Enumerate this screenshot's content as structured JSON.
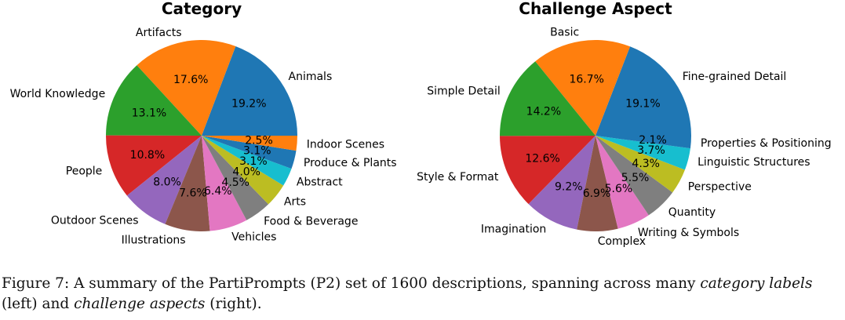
{
  "chart_data": [
    {
      "type": "pie",
      "title": "Category",
      "slices": [
        {
          "label": "Animals",
          "value": 19.2,
          "pct_label": "19.2%",
          "color": "#1f77b4"
        },
        {
          "label": "Artifacts",
          "value": 17.6,
          "pct_label": "17.6%",
          "color": "#ff7f0e"
        },
        {
          "label": "World Knowledge",
          "value": 13.1,
          "pct_label": "13.1%",
          "color": "#2ca02c"
        },
        {
          "label": "People",
          "value": 10.8,
          "pct_label": "10.8%",
          "color": "#d62728"
        },
        {
          "label": "Outdoor Scenes",
          "value": 8.0,
          "pct_label": "8.0%",
          "color": "#9467bd"
        },
        {
          "label": "Illustrations",
          "value": 7.6,
          "pct_label": "7.6%",
          "color": "#8c564b"
        },
        {
          "label": "Vehicles",
          "value": 6.4,
          "pct_label": "6.4%",
          "color": "#e377c2"
        },
        {
          "label": "Food & Beverage",
          "value": 4.5,
          "pct_label": "4.5%",
          "color": "#7f7f7f"
        },
        {
          "label": "Arts",
          "value": 4.0,
          "pct_label": "4.0%",
          "color": "#bcbd22"
        },
        {
          "label": "Abstract",
          "value": 3.1,
          "pct_label": "3.1%",
          "color": "#17becf"
        },
        {
          "label": "Produce & Plants",
          "value": 3.1,
          "pct_label": "3.1%",
          "color": "#1f77b4"
        },
        {
          "label": "Indoor Scenes",
          "value": 2.5,
          "pct_label": "2.5%",
          "color": "#ff7f0e"
        }
      ]
    },
    {
      "type": "pie",
      "title": "Challenge Aspect",
      "slices": [
        {
          "label": "Fine-grained Detail",
          "value": 19.1,
          "pct_label": "19.1%",
          "color": "#1f77b4"
        },
        {
          "label": "Basic",
          "value": 16.7,
          "pct_label": "16.7%",
          "color": "#ff7f0e"
        },
        {
          "label": "Simple Detail",
          "value": 14.2,
          "pct_label": "14.2%",
          "color": "#2ca02c"
        },
        {
          "label": "Style & Format",
          "value": 12.6,
          "pct_label": "12.6%",
          "color": "#d62728"
        },
        {
          "label": "Imagination",
          "value": 9.2,
          "pct_label": "9.2%",
          "color": "#9467bd"
        },
        {
          "label": "Complex",
          "value": 6.9,
          "pct_label": "6.9%",
          "color": "#8c564b"
        },
        {
          "label": "Writing & Symbols",
          "value": 5.6,
          "pct_label": "5.6%",
          "color": "#e377c2"
        },
        {
          "label": "Quantity",
          "value": 5.5,
          "pct_label": "5.5%",
          "color": "#7f7f7f"
        },
        {
          "label": "Perspective",
          "value": 4.3,
          "pct_label": "4.3%",
          "color": "#bcbd22"
        },
        {
          "label": "Linguistic Structures",
          "value": 3.7,
          "pct_label": "3.7%",
          "color": "#17becf"
        },
        {
          "label": "Properties & Positioning",
          "value": 2.1,
          "pct_label": "2.1%",
          "color": "#1f77b4"
        }
      ]
    }
  ],
  "caption": {
    "prefix": "Figure 7: A summary of the PartiPrompts (P2) set of 1600 descriptions, spanning across many ",
    "em1": "category labels",
    "middle": " (left) and ",
    "em2": "challenge aspects",
    "suffix": " (right)."
  }
}
